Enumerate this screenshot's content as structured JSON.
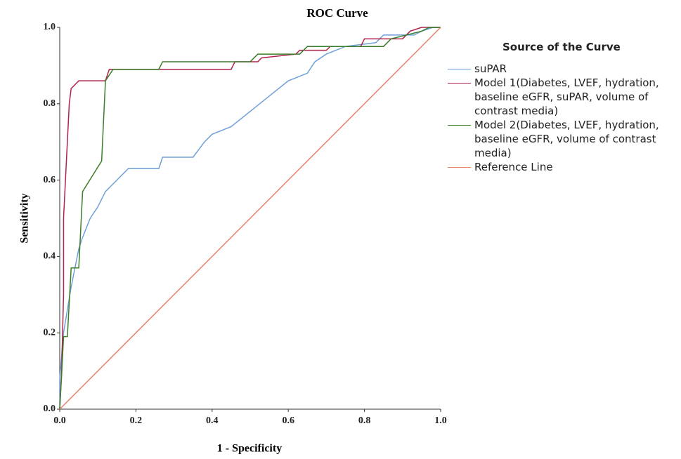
{
  "chart_data": {
    "type": "line",
    "title": "ROC Curve",
    "x_label": "1 - Specificity",
    "y_label": "Sensitivity",
    "legend_title": "Source of the Curve",
    "legend": "right",
    "xlim": [
      0,
      1
    ],
    "ylim": [
      0,
      1
    ],
    "xticks": [
      {
        "value": 0,
        "label": "0.0"
      },
      0.2,
      0.4,
      0.6,
      0.8,
      {
        "value": 1,
        "label": "1.0"
      }
    ],
    "yticks": [
      {
        "value": 0,
        "label": "0.0"
      },
      0.2,
      0.4,
      0.6,
      0.8,
      {
        "value": 1,
        "label": "1.0"
      }
    ],
    "series": [
      {
        "name": "suPAR",
        "color": "#6fa0d8",
        "x": [
          0,
          0,
          0.01,
          0.02,
          0.03,
          0.04,
          0.05,
          0.06,
          0.08,
          0.1,
          0.12,
          0.15,
          0.18,
          0.26,
          0.27,
          0.35,
          0.38,
          0.4,
          0.45,
          0.5,
          0.55,
          0.6,
          0.65,
          0.67,
          0.7,
          0.75,
          0.83,
          0.85,
          0.93,
          0.95,
          0.98,
          1
        ],
        "values": [
          0,
          0.08,
          0.2,
          0.26,
          0.32,
          0.37,
          0.42,
          0.45,
          0.5,
          0.53,
          0.57,
          0.6,
          0.63,
          0.63,
          0.66,
          0.66,
          0.7,
          0.72,
          0.74,
          0.78,
          0.82,
          0.86,
          0.88,
          0.91,
          0.93,
          0.95,
          0.96,
          0.98,
          0.98,
          0.99,
          1,
          1
        ]
      },
      {
        "name": "Model 1(Diabetes, LVEF, hydration, baseline eGFR, suPAR, volume of contrast media)",
        "color": "#b0224a",
        "x": [
          0,
          0.005,
          0.01,
          0.01,
          0.015,
          0.02,
          0.025,
          0.03,
          0.04,
          0.05,
          0.12,
          0.13,
          0.45,
          0.46,
          0.52,
          0.53,
          0.62,
          0.63,
          0.7,
          0.71,
          0.79,
          0.8,
          0.9,
          0.92,
          0.95,
          1
        ],
        "values": [
          0,
          0.1,
          0.3,
          0.5,
          0.6,
          0.7,
          0.8,
          0.84,
          0.85,
          0.86,
          0.86,
          0.89,
          0.89,
          0.91,
          0.91,
          0.92,
          0.93,
          0.94,
          0.94,
          0.95,
          0.95,
          0.97,
          0.97,
          0.99,
          1,
          1
        ]
      },
      {
        "name": "Model 2(Diabetes, LVEF, hydration, baseline eGFR, volume of contrast media)",
        "color": "#3a7d2a",
        "x": [
          0,
          0.005,
          0.01,
          0.02,
          0.03,
          0.05,
          0.06,
          0.11,
          0.12,
          0.14,
          0.26,
          0.27,
          0.5,
          0.52,
          0.63,
          0.65,
          0.85,
          0.87,
          0.95,
          0.97,
          1
        ],
        "values": [
          0,
          0.09,
          0.19,
          0.19,
          0.37,
          0.37,
          0.57,
          0.65,
          0.86,
          0.89,
          0.89,
          0.91,
          0.91,
          0.93,
          0.93,
          0.95,
          0.95,
          0.97,
          0.99,
          1,
          1
        ]
      },
      {
        "name": "Reference Line",
        "color": "#e8826a",
        "x": [
          0,
          1
        ],
        "values": [
          0,
          1
        ]
      }
    ]
  }
}
